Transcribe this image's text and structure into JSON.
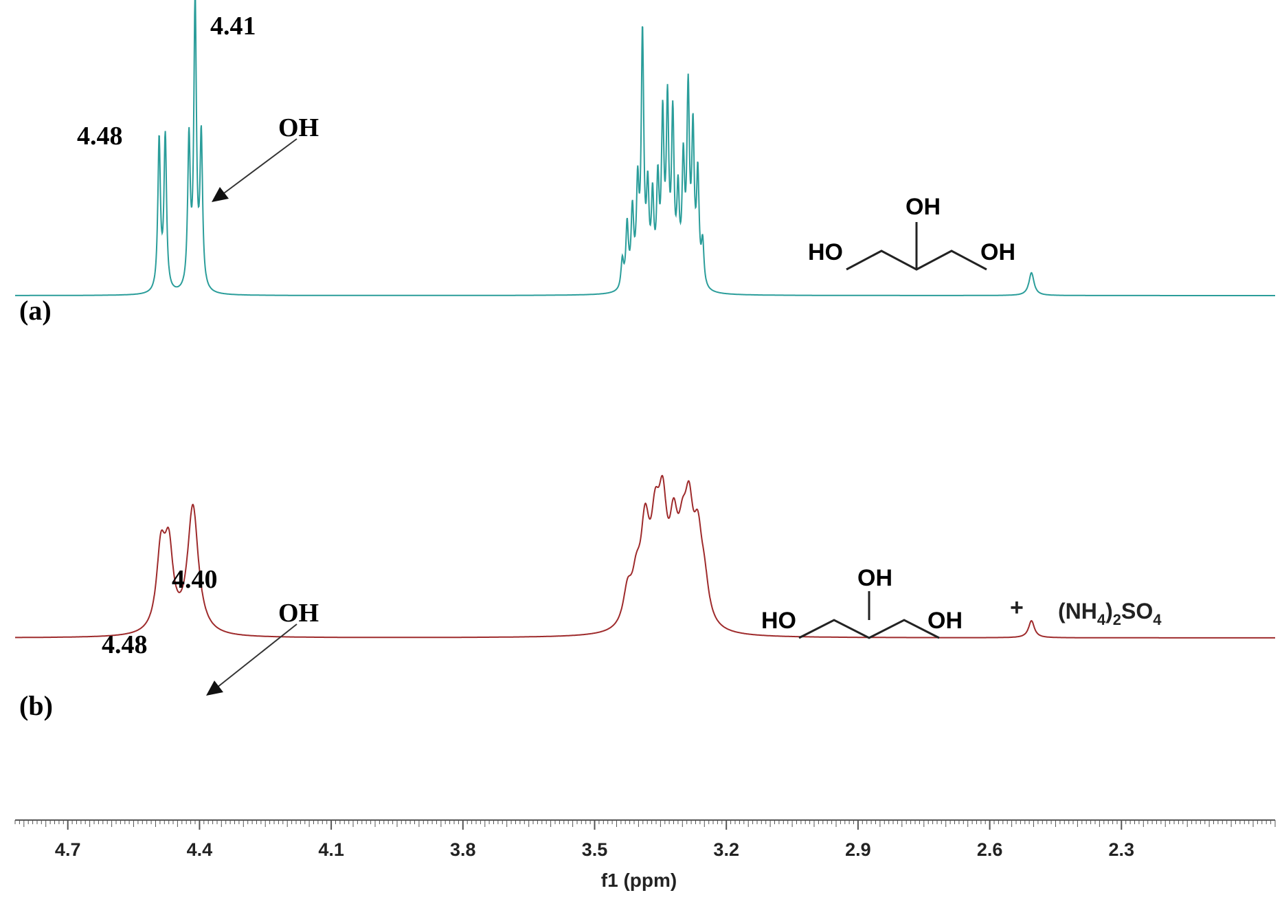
{
  "chart_data": {
    "type": "line",
    "xlabel": "f1 (ppm)",
    "x_reversed": true,
    "xlim": [
      4.82,
      1.95
    ],
    "ticks": [
      "4.7",
      "4.4",
      "4.1",
      "3.8",
      "3.5",
      "3.2",
      "2.9",
      "2.6",
      "2.3"
    ],
    "tick_values": [
      4.7,
      4.4,
      4.1,
      3.8,
      3.5,
      3.2,
      2.9,
      2.6,
      2.3
    ],
    "minor_tick_step": 0.01,
    "grid": false,
    "legend": "none",
    "series": [
      {
        "name": "(a)",
        "color": "#2a9d9a",
        "peaks": [
          {
            "ppm": 4.492,
            "height": 0.53,
            "width": 0.0035
          },
          {
            "ppm": 4.478,
            "height": 0.54,
            "width": 0.0035
          },
          {
            "ppm": 4.424,
            "height": 0.52,
            "width": 0.0035
          },
          {
            "ppm": 4.41,
            "height": 1.0,
            "width": 0.0035
          },
          {
            "ppm": 4.396,
            "height": 0.53,
            "width": 0.0035
          },
          {
            "ppm": 3.437,
            "height": 0.1,
            "width": 0.0035
          },
          {
            "ppm": 3.426,
            "height": 0.22,
            "width": 0.0035
          },
          {
            "ppm": 3.414,
            "height": 0.26,
            "width": 0.0035
          },
          {
            "ppm": 3.402,
            "height": 0.33,
            "width": 0.0035
          },
          {
            "ppm": 3.391,
            "height": 0.87,
            "width": 0.0035
          },
          {
            "ppm": 3.379,
            "height": 0.31,
            "width": 0.0035
          },
          {
            "ppm": 3.368,
            "height": 0.29,
            "width": 0.0035
          },
          {
            "ppm": 3.356,
            "height": 0.34,
            "width": 0.0035
          },
          {
            "ppm": 3.345,
            "height": 0.56,
            "width": 0.0035
          },
          {
            "ppm": 3.334,
            "height": 0.61,
            "width": 0.0035
          },
          {
            "ppm": 3.322,
            "height": 0.57,
            "width": 0.0035
          },
          {
            "ppm": 3.31,
            "height": 0.3,
            "width": 0.0035
          },
          {
            "ppm": 3.298,
            "height": 0.41,
            "width": 0.0035
          },
          {
            "ppm": 3.287,
            "height": 0.66,
            "width": 0.0035
          },
          {
            "ppm": 3.276,
            "height": 0.52,
            "width": 0.0035
          },
          {
            "ppm": 3.265,
            "height": 0.38,
            "width": 0.0035
          },
          {
            "ppm": 3.254,
            "height": 0.15,
            "width": 0.0035
          },
          {
            "ppm": 2.505,
            "height": 0.08,
            "width": 0.007
          }
        ],
        "annotations": [
          "4.48",
          "4.41",
          "OH"
        ],
        "structure_labels": [
          "OH",
          "HO",
          "OH"
        ]
      },
      {
        "name": "(b)",
        "color": "#9e2a2b",
        "peaks": [
          {
            "ppm": 4.488,
            "height": 0.36,
            "width": 0.012
          },
          {
            "ppm": 4.47,
            "height": 0.36,
            "width": 0.012
          },
          {
            "ppm": 4.415,
            "height": 0.6,
            "width": 0.015
          },
          {
            "ppm": 3.425,
            "height": 0.16,
            "width": 0.012
          },
          {
            "ppm": 3.405,
            "height": 0.18,
            "width": 0.012
          },
          {
            "ppm": 3.385,
            "height": 0.42,
            "width": 0.012
          },
          {
            "ppm": 3.362,
            "height": 0.38,
            "width": 0.012
          },
          {
            "ppm": 3.345,
            "height": 0.47,
            "width": 0.012
          },
          {
            "ppm": 3.32,
            "height": 0.38,
            "width": 0.012
          },
          {
            "ppm": 3.3,
            "height": 0.28,
            "width": 0.012
          },
          {
            "ppm": 3.285,
            "height": 0.44,
            "width": 0.012
          },
          {
            "ppm": 3.265,
            "height": 0.35,
            "width": 0.012
          },
          {
            "ppm": 3.25,
            "height": 0.16,
            "width": 0.012
          },
          {
            "ppm": 2.505,
            "height": 0.08,
            "width": 0.008
          }
        ],
        "annotations": [
          "4.48",
          "4.40",
          "OH"
        ],
        "structure_labels": [
          "OH",
          "HO",
          "OH"
        ],
        "additive": [
          "+",
          "(NH",
          "4",
          ")",
          "2",
          "SO",
          "4"
        ]
      }
    ]
  }
}
